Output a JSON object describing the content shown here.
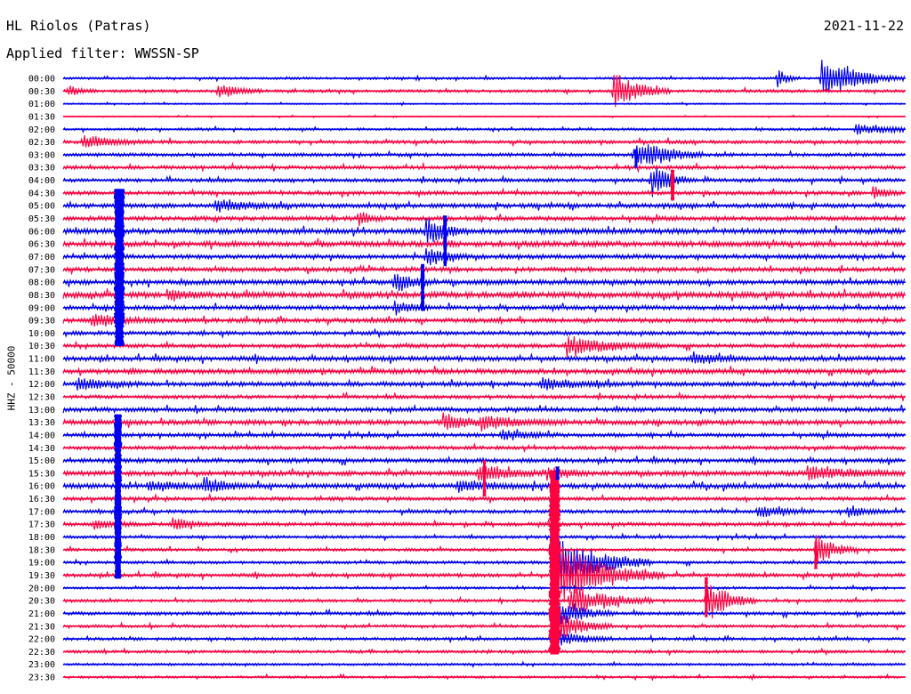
{
  "header": {
    "title": "HL Riolos (Patras)",
    "date": "2021-11-22",
    "filter": "Applied filter: WWSSN-SP"
  },
  "chart_data": {
    "type": "line",
    "title": "HL Riolos (Patras)",
    "ylabel": "HHZ - 50000",
    "xlabel": "",
    "traces_per_hour": 2,
    "trace_minutes": 30,
    "colors": [
      "#0000ee",
      "#ff0040"
    ],
    "row_labels": [
      "00:00",
      "00:30",
      "01:00",
      "01:30",
      "02:00",
      "02:30",
      "03:00",
      "03:30",
      "04:00",
      "04:30",
      "05:00",
      "05:30",
      "06:00",
      "06:30",
      "07:00",
      "07:30",
      "08:00",
      "08:30",
      "09:00",
      "09:30",
      "10:00",
      "10:30",
      "11:00",
      "11:30",
      "12:00",
      "12:30",
      "13:00",
      "13:30",
      "14:00",
      "14:30",
      "15:00",
      "15:30",
      "16:00",
      "16:30",
      "17:00",
      "17:30",
      "18:00",
      "18:30",
      "19:00",
      "19:30",
      "20:00",
      "20:30",
      "21:00",
      "21:30",
      "22:00",
      "22:30",
      "23:00",
      "23:30"
    ],
    "noise_levels": [
      1.0,
      1.2,
      0.6,
      0.5,
      1.0,
      1.4,
      1.4,
      1.5,
      1.5,
      1.6,
      1.8,
      1.8,
      2.2,
      2.2,
      1.8,
      1.8,
      2.0,
      2.4,
      1.8,
      1.8,
      1.6,
      1.6,
      2.0,
      2.0,
      1.8,
      1.5,
      1.8,
      2.0,
      1.6,
      1.5,
      1.8,
      2.0,
      2.0,
      1.5,
      1.4,
      1.5,
      1.2,
      1.2,
      1.2,
      1.5,
      1.0,
      1.2,
      1.4,
      1.2,
      1.2,
      1.2,
      1.0,
      1.0
    ],
    "events": [
      {
        "row": 0,
        "minute": 27.0,
        "amplitude": 22,
        "duration": 0.8
      },
      {
        "row": 0,
        "minute": 27.6,
        "amplitude": 8,
        "duration": 1.5
      },
      {
        "row": 0,
        "minute": 25.4,
        "amplitude": 14,
        "duration": 0.3
      },
      {
        "row": 1,
        "minute": 5.5,
        "amplitude": 10,
        "duration": 0.6
      },
      {
        "row": 1,
        "minute": 19.6,
        "amplitude": 22,
        "duration": 0.8
      },
      {
        "row": 1,
        "minute": 0.2,
        "amplitude": 6,
        "duration": 0.4
      },
      {
        "row": 5,
        "minute": 0.7,
        "amplitude": 8,
        "duration": 1.0
      },
      {
        "row": 4,
        "minute": 28.2,
        "amplitude": 6,
        "duration": 1.5
      },
      {
        "row": 6,
        "minute": 20.3,
        "amplitude": 12,
        "duration": 1.0
      },
      {
        "row": 6,
        "minute": 20.8,
        "amplitude": 6,
        "duration": 0.8
      },
      {
        "row": 8,
        "minute": 20.9,
        "amplitude": 20,
        "duration": 0.6
      },
      {
        "row": 9,
        "minute": 28.8,
        "amplitude": 6,
        "duration": 0.5
      },
      {
        "row": 10,
        "minute": 5.4,
        "amplitude": 6,
        "duration": 1.2
      },
      {
        "row": 11,
        "minute": 10.5,
        "amplitude": 8,
        "duration": 0.4
      },
      {
        "row": 12,
        "minute": 12.9,
        "amplitude": 18,
        "duration": 0.6
      },
      {
        "row": 14,
        "minute": 12.9,
        "amplitude": 12,
        "duration": 0.6
      },
      {
        "row": 16,
        "minute": 11.8,
        "amplitude": 12,
        "duration": 0.6
      },
      {
        "row": 17,
        "minute": 3.7,
        "amplitude": 6,
        "duration": 0.6
      },
      {
        "row": 18,
        "minute": 11.8,
        "amplitude": 8,
        "duration": 0.5
      },
      {
        "row": 19,
        "minute": 1.0,
        "amplitude": 7,
        "duration": 1.0
      },
      {
        "row": 21,
        "minute": 17.9,
        "amplitude": 12,
        "duration": 1.4
      },
      {
        "row": 22,
        "minute": 22.4,
        "amplitude": 7,
        "duration": 0.8
      },
      {
        "row": 24,
        "minute": 0.5,
        "amplitude": 7,
        "duration": 1.0
      },
      {
        "row": 24,
        "minute": 17.0,
        "amplitude": 6,
        "duration": 1.2
      },
      {
        "row": 27,
        "minute": 13.5,
        "amplitude": 9,
        "duration": 0.8
      },
      {
        "row": 27,
        "minute": 14.9,
        "amplitude": 7,
        "duration": 1.2
      },
      {
        "row": 28,
        "minute": 15.6,
        "amplitude": 6,
        "duration": 0.8
      },
      {
        "row": 31,
        "minute": 14.8,
        "amplitude": 12,
        "duration": 0.8
      },
      {
        "row": 31,
        "minute": 17.2,
        "amplitude": 9,
        "duration": 0.6
      },
      {
        "row": 31,
        "minute": 26.5,
        "amplitude": 8,
        "duration": 1.4
      },
      {
        "row": 32,
        "minute": 3.0,
        "amplitude": 6,
        "duration": 1.0
      },
      {
        "row": 32,
        "minute": 5.0,
        "amplitude": 10,
        "duration": 0.6
      },
      {
        "row": 32,
        "minute": 14.0,
        "amplitude": 6,
        "duration": 1.2
      },
      {
        "row": 34,
        "minute": 24.7,
        "amplitude": 7,
        "duration": 0.8
      },
      {
        "row": 34,
        "minute": 27.9,
        "amplitude": 7,
        "duration": 0.6
      },
      {
        "row": 35,
        "minute": 1.1,
        "amplitude": 6,
        "duration": 0.6
      },
      {
        "row": 35,
        "minute": 3.9,
        "amplitude": 9,
        "duration": 0.5
      },
      {
        "row": 37,
        "minute": 26.8,
        "amplitude": 20,
        "duration": 0.6
      },
      {
        "row": 39,
        "minute": 17.4,
        "amplitude": 40,
        "duration": 1.6
      },
      {
        "row": 38,
        "minute": 17.4,
        "amplitude": 35,
        "duration": 1.4
      },
      {
        "row": 41,
        "minute": 22.9,
        "amplitude": 26,
        "duration": 0.7
      },
      {
        "row": 41,
        "minute": 18.0,
        "amplitude": 20,
        "duration": 1.2
      },
      {
        "row": 43,
        "minute": 17.6,
        "amplitude": 18,
        "duration": 0.8
      },
      {
        "row": 44,
        "minute": 17.6,
        "amplitude": 10,
        "duration": 0.8
      },
      {
        "row": 42,
        "minute": 17.6,
        "amplitude": 16,
        "duration": 0.8
      }
    ],
    "bands": [
      {
        "minute": 2.0,
        "row_start": 8.7,
        "row_end": 21.0,
        "width_min": 0.3,
        "color": "#0000ee"
      },
      {
        "minute": 1.95,
        "row_start": 26.4,
        "row_end": 39.3,
        "width_min": 0.22,
        "color": "#0000ee"
      },
      {
        "minute": 17.5,
        "row_start": 30.8,
        "row_end": 45.3,
        "width_min": 0.35,
        "color": "#ff0040"
      },
      {
        "minute": 17.6,
        "row_start": 30.5,
        "row_end": 31.5,
        "width_min": 0.1,
        "color": "#0000ee"
      },
      {
        "minute": 13.6,
        "row_start": 10.8,
        "row_end": 14.8,
        "width_min": 0.1,
        "color": "#0000ee"
      },
      {
        "minute": 12.8,
        "row_start": 14.6,
        "row_end": 18.3,
        "width_min": 0.1,
        "color": "#0000ee"
      },
      {
        "minute": 21.7,
        "row_start": 7.2,
        "row_end": 9.6,
        "width_min": 0.1,
        "color": "#ff0040"
      },
      {
        "minute": 20.4,
        "row_start": 5.6,
        "row_end": 7.0,
        "width_min": 0.08,
        "color": "#0000ee"
      },
      {
        "minute": 26.8,
        "row_start": 36.4,
        "row_end": 38.5,
        "width_min": 0.06,
        "color": "#ff0040"
      },
      {
        "minute": 22.9,
        "row_start": 39.2,
        "row_end": 42.4,
        "width_min": 0.08,
        "color": "#ff0040"
      },
      {
        "minute": 15.0,
        "row_start": 30.0,
        "row_end": 32.8,
        "width_min": 0.06,
        "color": "#ff0040"
      }
    ]
  }
}
